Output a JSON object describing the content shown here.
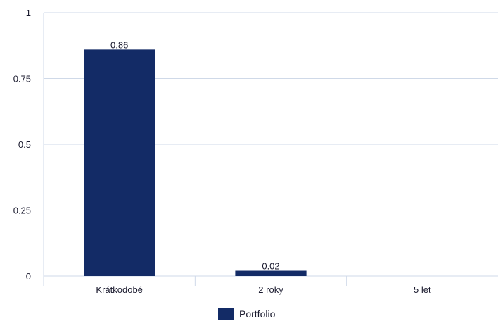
{
  "chart_data": {
    "type": "bar",
    "categories": [
      "Krátkodobé",
      "2 roky",
      "5 let"
    ],
    "series": [
      {
        "name": "Portfolio",
        "values": [
          0.86,
          0.02,
          null
        ],
        "color": "#132b66"
      }
    ],
    "data_labels": [
      "0.86",
      "0.02",
      ""
    ],
    "y_ticks": [
      "0",
      "0.25",
      "0.5",
      "0.75",
      "1"
    ],
    "ylim": [
      0,
      1
    ],
    "grid": true,
    "gridline_color": "#cfd9e8",
    "legend_position": "bottom-center",
    "legend_label": "Portfolio"
  }
}
